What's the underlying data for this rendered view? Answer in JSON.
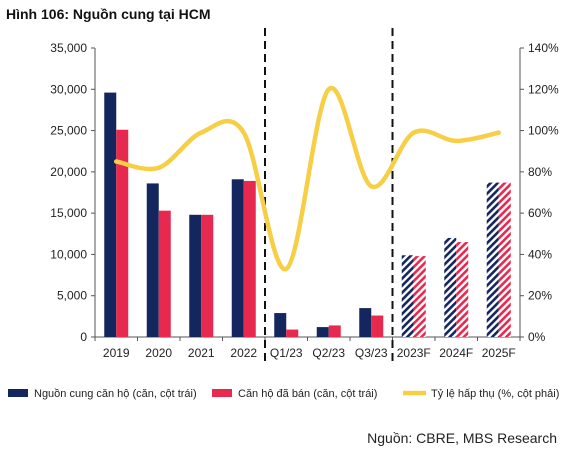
{
  "figure": {
    "title": "Hình 106: Nguồn cung tại HCM",
    "source": "Nguồn: CBRE, MBS Research"
  },
  "chart_data": {
    "type": "bar",
    "categories": [
      "2019",
      "2020",
      "2021",
      "2022",
      "Q1/23",
      "Q2/23",
      "Q3/23",
      "2023F",
      "2024F",
      "2025F"
    ],
    "forecast_categories": [
      "2023F",
      "2024F",
      "2025F"
    ],
    "series": [
      {
        "name": "Nguồn cung căn hộ (căn, cột trái)",
        "type": "bar",
        "axis": "left",
        "color": "#14265e",
        "values": [
          29600,
          18600,
          14800,
          19100,
          2900,
          1200,
          3500,
          9900,
          12000,
          18700
        ]
      },
      {
        "name": "Căn hộ đã bán (căn, cột trái)",
        "type": "bar",
        "axis": "left",
        "color": "#e8294f",
        "values": [
          25100,
          15300,
          14800,
          18900,
          900,
          1400,
          2600,
          9800,
          11500,
          18700
        ]
      },
      {
        "name": "Tỷ lệ hấp thụ (%, cột phải)",
        "type": "line",
        "axis": "right",
        "color": "#f6cf47",
        "smooth": true,
        "values": [
          85,
          82,
          99,
          99,
          33,
          120,
          73,
          99,
          95,
          99
        ]
      }
    ],
    "y_left": {
      "min": 0,
      "max": 35000,
      "step": 5000,
      "tick_labels": [
        "0",
        "5,000",
        "10,000",
        "15,000",
        "20,000",
        "25,000",
        "30,000",
        "35,000"
      ]
    },
    "y_right": {
      "min": 0,
      "max": 140,
      "step": 20,
      "tick_labels": [
        "0%",
        "20%",
        "40%",
        "60%",
        "80%",
        "100%",
        "120%",
        "140%"
      ]
    },
    "dividers_after": [
      "2022",
      "Q3/23"
    ],
    "legend_position": "bottom",
    "grid": false
  }
}
